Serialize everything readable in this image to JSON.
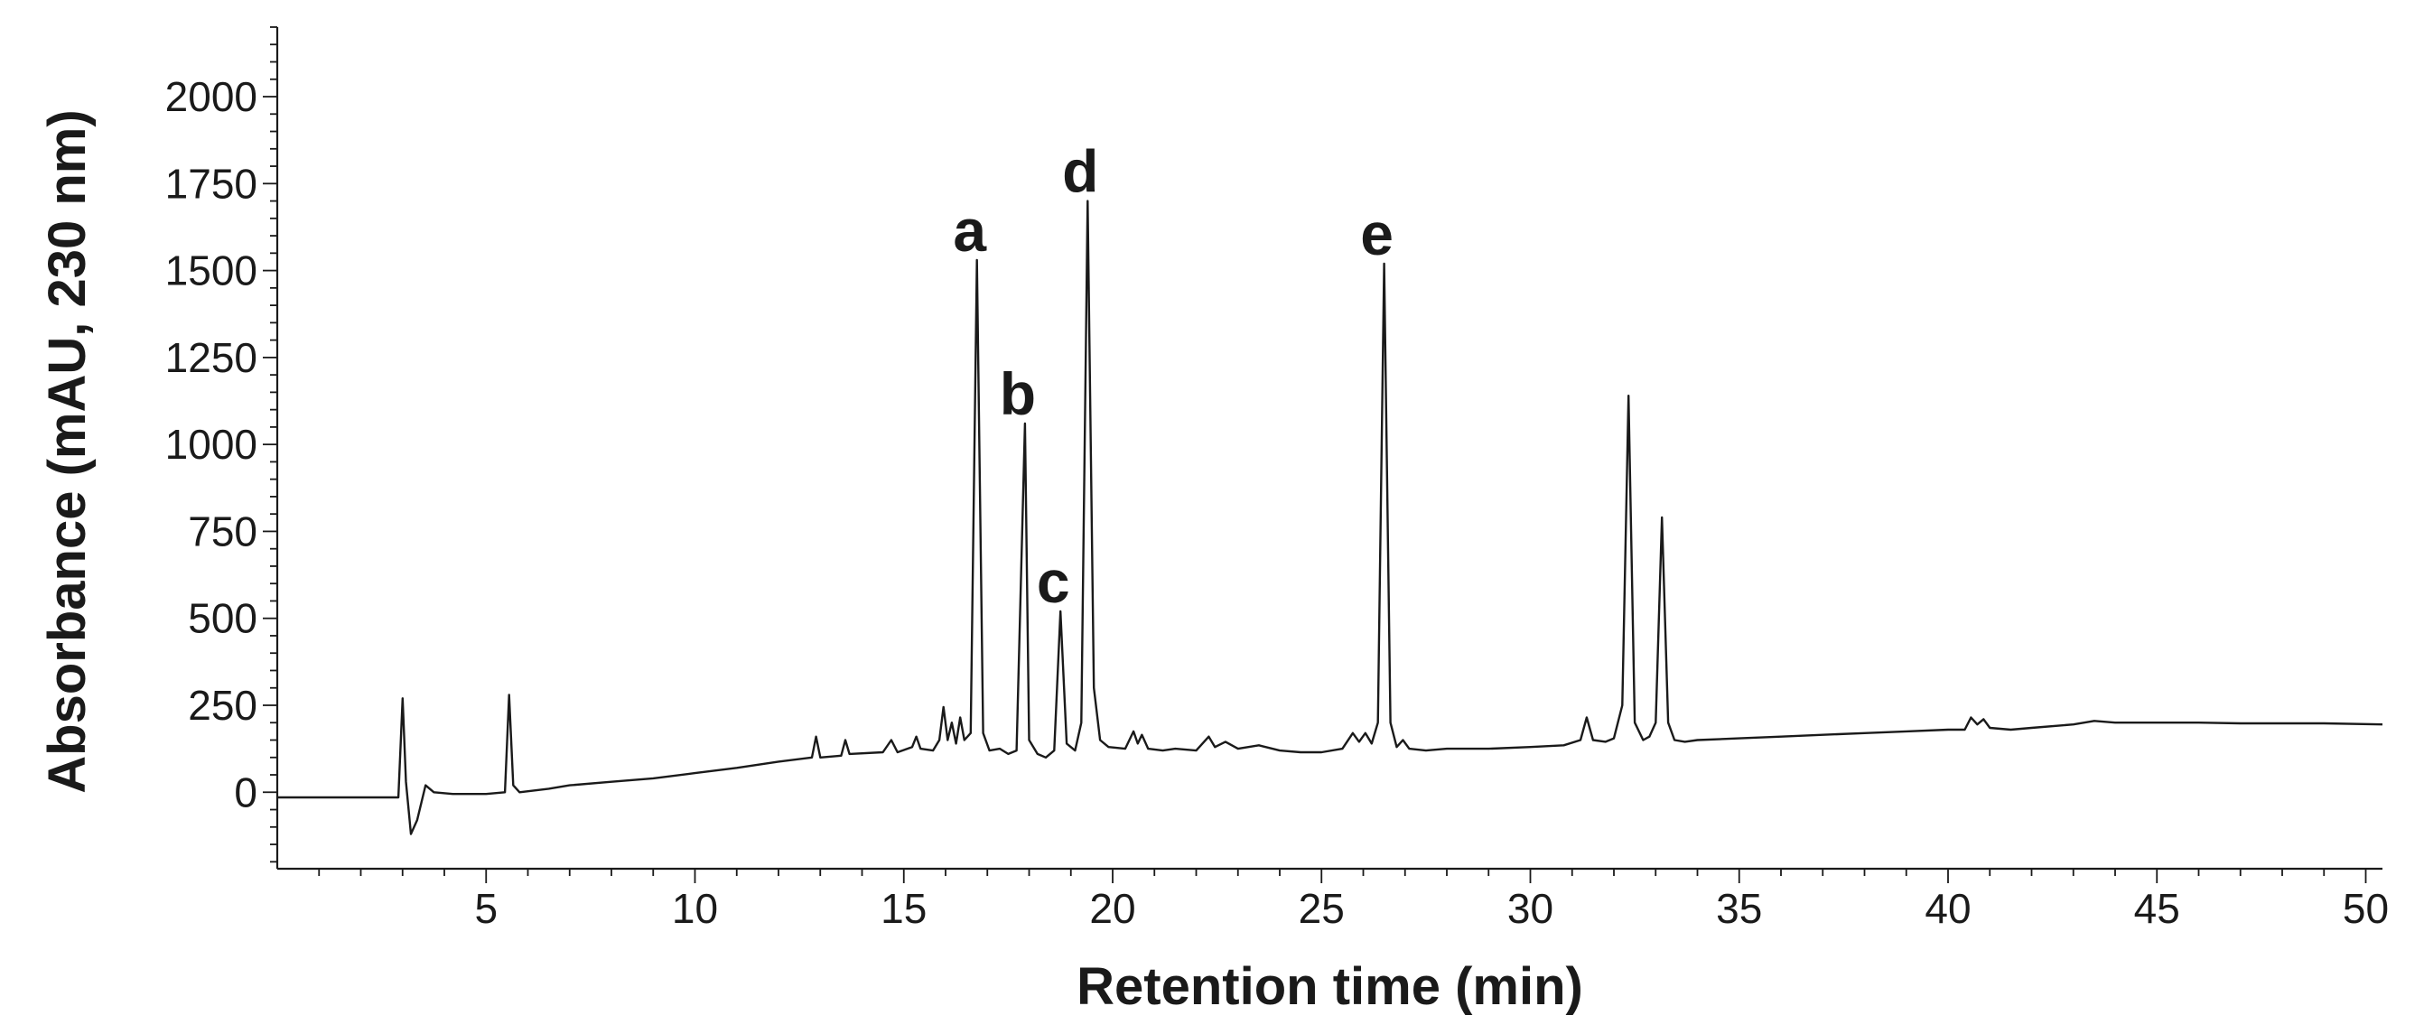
{
  "chart_data": {
    "type": "line",
    "title": "",
    "xlabel": "Retention time (min)",
    "ylabel": "Absorbance (mAU, 230 nm)",
    "xlim": [
      0,
      50.4
    ],
    "ylim": [
      -220,
      2200
    ],
    "x_ticks": [
      5,
      10,
      15,
      20,
      25,
      30,
      35,
      40,
      45,
      50
    ],
    "y_ticks": [
      0,
      250,
      500,
      750,
      1000,
      1250,
      1500,
      1750,
      2000
    ],
    "x_minor_step": 1,
    "y_minor_step": 50,
    "grid": false,
    "line_color": "#1a1a1a",
    "peaks": [
      {
        "label": "a",
        "x": 16.75,
        "y": 1530
      },
      {
        "label": "b",
        "x": 17.9,
        "y": 1060
      },
      {
        "label": "c",
        "x": 18.75,
        "y": 520
      },
      {
        "label": "d",
        "x": 19.4,
        "y": 1700
      },
      {
        "label": "e",
        "x": 26.5,
        "y": 1520
      }
    ],
    "series": [
      {
        "points": [
          [
            0,
            -15
          ],
          [
            2.9,
            -15
          ],
          [
            3.0,
            270
          ],
          [
            3.08,
            30
          ],
          [
            3.2,
            -120
          ],
          [
            3.35,
            -80
          ],
          [
            3.55,
            20
          ],
          [
            3.75,
            0
          ],
          [
            4.2,
            -5
          ],
          [
            5.0,
            -5
          ],
          [
            5.45,
            0
          ],
          [
            5.55,
            280
          ],
          [
            5.65,
            20
          ],
          [
            5.8,
            0
          ],
          [
            6.5,
            10
          ],
          [
            7.0,
            20
          ],
          [
            8.0,
            30
          ],
          [
            9.0,
            40
          ],
          [
            10.0,
            55
          ],
          [
            11.0,
            70
          ],
          [
            12.0,
            88
          ],
          [
            12.8,
            100
          ],
          [
            12.9,
            160
          ],
          [
            13.0,
            100
          ],
          [
            13.5,
            105
          ],
          [
            13.6,
            150
          ],
          [
            13.7,
            110
          ],
          [
            14.5,
            115
          ],
          [
            14.7,
            150
          ],
          [
            14.85,
            115
          ],
          [
            15.2,
            130
          ],
          [
            15.3,
            160
          ],
          [
            15.4,
            125
          ],
          [
            15.7,
            120
          ],
          [
            15.85,
            150
          ],
          [
            15.95,
            245
          ],
          [
            16.05,
            150
          ],
          [
            16.15,
            200
          ],
          [
            16.25,
            140
          ],
          [
            16.35,
            215
          ],
          [
            16.45,
            150
          ],
          [
            16.6,
            170
          ],
          [
            16.75,
            1530
          ],
          [
            16.9,
            170
          ],
          [
            17.05,
            120
          ],
          [
            17.3,
            125
          ],
          [
            17.5,
            110
          ],
          [
            17.7,
            120
          ],
          [
            17.9,
            1060
          ],
          [
            18.0,
            150
          ],
          [
            18.2,
            110
          ],
          [
            18.4,
            100
          ],
          [
            18.6,
            120
          ],
          [
            18.75,
            520
          ],
          [
            18.9,
            140
          ],
          [
            19.1,
            120
          ],
          [
            19.25,
            200
          ],
          [
            19.4,
            1700
          ],
          [
            19.55,
            300
          ],
          [
            19.7,
            150
          ],
          [
            19.9,
            130
          ],
          [
            20.3,
            125
          ],
          [
            20.5,
            175
          ],
          [
            20.6,
            140
          ],
          [
            20.7,
            165
          ],
          [
            20.85,
            125
          ],
          [
            21.2,
            120
          ],
          [
            21.5,
            125
          ],
          [
            22.0,
            120
          ],
          [
            22.3,
            160
          ],
          [
            22.45,
            130
          ],
          [
            22.7,
            145
          ],
          [
            23.0,
            125
          ],
          [
            23.5,
            135
          ],
          [
            24.0,
            120
          ],
          [
            24.5,
            115
          ],
          [
            25.0,
            115
          ],
          [
            25.5,
            125
          ],
          [
            25.75,
            170
          ],
          [
            25.9,
            145
          ],
          [
            26.05,
            170
          ],
          [
            26.2,
            140
          ],
          [
            26.35,
            200
          ],
          [
            26.5,
            1520
          ],
          [
            26.65,
            200
          ],
          [
            26.8,
            130
          ],
          [
            26.95,
            150
          ],
          [
            27.1,
            125
          ],
          [
            27.5,
            120
          ],
          [
            28.0,
            125
          ],
          [
            29.0,
            125
          ],
          [
            30.0,
            130
          ],
          [
            30.8,
            135
          ],
          [
            31.2,
            150
          ],
          [
            31.35,
            215
          ],
          [
            31.5,
            150
          ],
          [
            31.8,
            145
          ],
          [
            32.0,
            155
          ],
          [
            32.2,
            250
          ],
          [
            32.35,
            1140
          ],
          [
            32.5,
            200
          ],
          [
            32.7,
            150
          ],
          [
            32.85,
            160
          ],
          [
            33.0,
            200
          ],
          [
            33.15,
            790
          ],
          [
            33.3,
            200
          ],
          [
            33.45,
            150
          ],
          [
            33.7,
            145
          ],
          [
            34.0,
            150
          ],
          [
            35.0,
            155
          ],
          [
            36.0,
            160
          ],
          [
            37.0,
            165
          ],
          [
            38.0,
            170
          ],
          [
            39.0,
            175
          ],
          [
            40.0,
            180
          ],
          [
            40.4,
            180
          ],
          [
            40.55,
            215
          ],
          [
            40.7,
            195
          ],
          [
            40.85,
            210
          ],
          [
            41.0,
            185
          ],
          [
            41.5,
            180
          ],
          [
            42.0,
            185
          ],
          [
            43.0,
            195
          ],
          [
            43.5,
            205
          ],
          [
            44.0,
            200
          ],
          [
            45.0,
            200
          ],
          [
            46.0,
            200
          ],
          [
            47.0,
            198
          ],
          [
            48.0,
            198
          ],
          [
            49.0,
            198
          ],
          [
            50.4,
            195
          ]
        ]
      }
    ]
  }
}
